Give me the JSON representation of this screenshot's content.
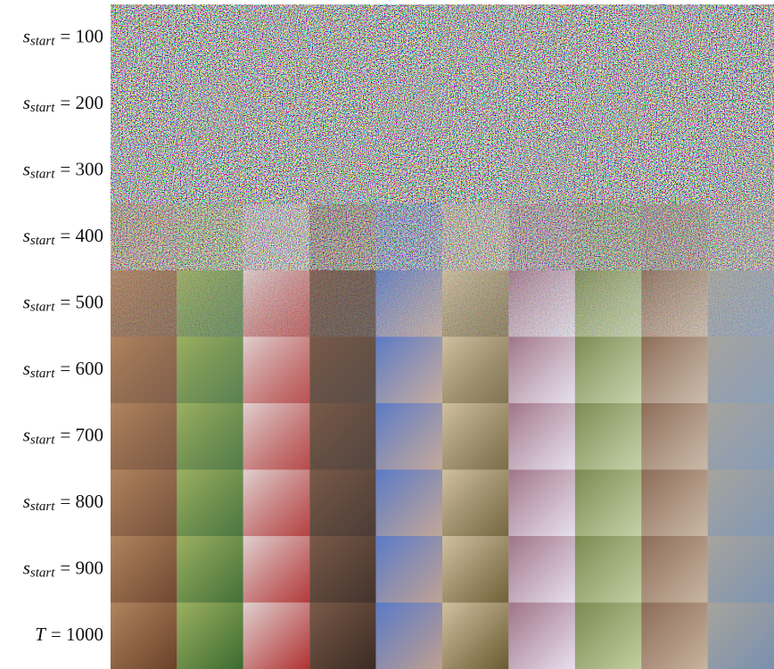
{
  "figure": {
    "rows": [
      {
        "symbol": "s",
        "subscript": "start",
        "value": "= 100"
      },
      {
        "symbol": "s",
        "subscript": "start",
        "value": "= 200"
      },
      {
        "symbol": "s",
        "subscript": "start",
        "value": "= 300"
      },
      {
        "symbol": "s",
        "subscript": "start",
        "value": "= 400"
      },
      {
        "symbol": "s",
        "subscript": "start",
        "value": "= 500"
      },
      {
        "symbol": "s",
        "subscript": "start",
        "value": "= 600"
      },
      {
        "symbol": "s",
        "subscript": "start",
        "value": "= 700"
      },
      {
        "symbol": "s",
        "subscript": "start",
        "value": "= 800"
      },
      {
        "symbol": "s",
        "subscript": "start",
        "value": "= 900"
      },
      {
        "symbol": "T",
        "value": "= 1000"
      }
    ]
  }
}
